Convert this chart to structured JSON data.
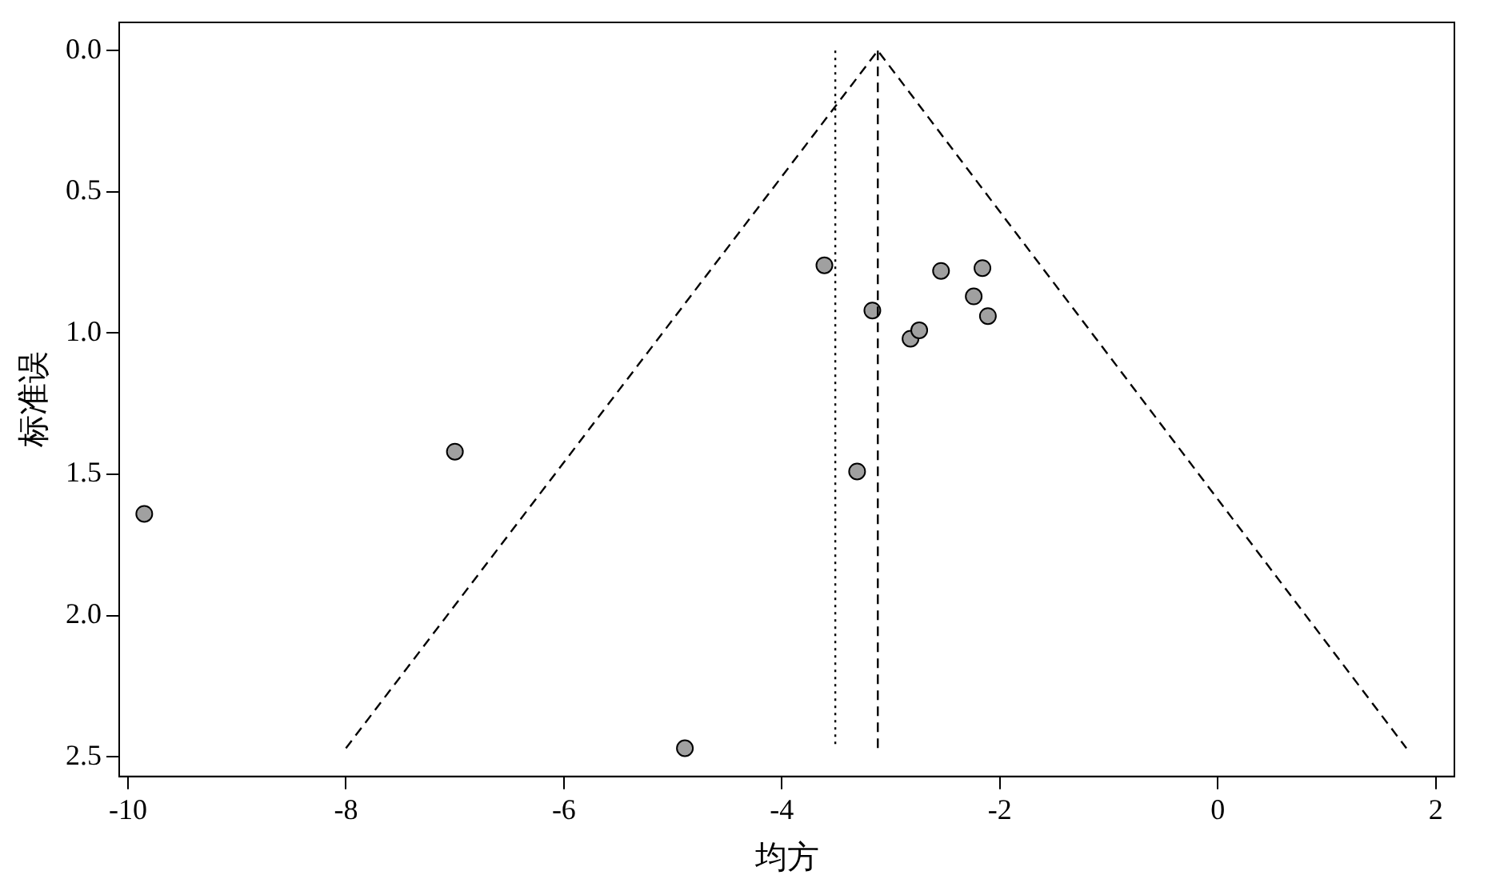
{
  "chart_data": {
    "type": "scatter",
    "xlabel": "均方",
    "ylabel": "标准误",
    "xlim": [
      -10.08,
      2.17
    ],
    "xticks": [
      -10,
      -8,
      -6,
      -4,
      -2,
      0,
      2
    ],
    "ylim": [
      2.57,
      -0.1
    ],
    "yticks": [
      {
        "value": 0,
        "label": "0.0"
      },
      {
        "value": 0.5,
        "label": "0.5"
      },
      {
        "value": 1,
        "label": "1.0"
      },
      {
        "value": 1.5,
        "label": "1.5"
      },
      {
        "value": 2,
        "label": "2.0"
      },
      {
        "value": 2.5,
        "label": "2.5"
      }
    ],
    "grid": false,
    "legend": false,
    "marker": "circle",
    "series": [
      {
        "type": "line",
        "color": "#000000",
        "line_style": "dashed",
        "marker": "none",
        "x": [
          -8.0,
          -3.12,
          1.73
        ],
        "values": [
          2.47,
          0,
          2.47
        ]
      },
      {
        "type": "line",
        "color": "#000000",
        "line_style": "dashed",
        "marker": "none",
        "x": [
          -3.12,
          -3.12
        ],
        "values": [
          0,
          2.47
        ]
      },
      {
        "type": "line",
        "color": "#000000",
        "line_style": "dotted",
        "marker": "none",
        "x": [
          -3.51,
          -3.51
        ],
        "values": [
          0,
          2.47
        ]
      },
      {
        "color": "#a0a0a0",
        "x": [
          -9.85,
          -7.0,
          -4.89,
          -3.61,
          -3.31,
          -3.17,
          -2.82,
          -2.74,
          -2.54,
          -2.24,
          -2.16,
          -2.11
        ],
        "values": [
          1.64,
          1.42,
          2.47,
          0.76,
          1.49,
          0.92,
          1.02,
          0.99,
          0.78,
          0.87,
          0.77,
          0.94
        ]
      }
    ]
  }
}
